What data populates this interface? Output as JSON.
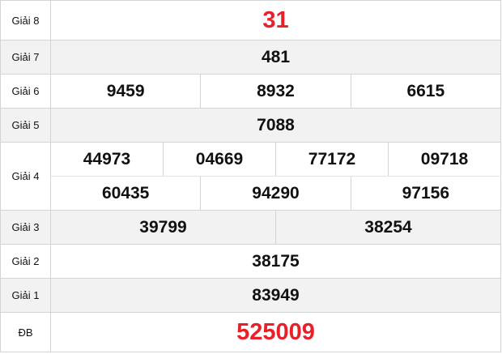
{
  "prizes": [
    {
      "label": "Giải 8",
      "rows": [
        [
          "31"
        ]
      ],
      "highlight": true
    },
    {
      "label": "Giải 7",
      "rows": [
        [
          "481"
        ]
      ]
    },
    {
      "label": "Giải 6",
      "rows": [
        [
          "9459",
          "8932",
          "6615"
        ]
      ]
    },
    {
      "label": "Giải 5",
      "rows": [
        [
          "7088"
        ]
      ]
    },
    {
      "label": "Giải 4",
      "rows": [
        [
          "44973",
          "04669",
          "77172",
          "09718"
        ],
        [
          "60435",
          "94290",
          "97156"
        ]
      ]
    },
    {
      "label": "Giải 3",
      "rows": [
        [
          "39799",
          "38254"
        ]
      ]
    },
    {
      "label": "Giải 2",
      "rows": [
        [
          "38175"
        ]
      ]
    },
    {
      "label": "Giải 1",
      "rows": [
        [
          "83949"
        ]
      ]
    },
    {
      "label": "ĐB",
      "rows": [
        [
          "525009"
        ]
      ],
      "highlight": true
    }
  ],
  "colors": {
    "highlight": "#e8202a",
    "row_alt": "#f2f2f2",
    "border": "#d4d4d4"
  }
}
